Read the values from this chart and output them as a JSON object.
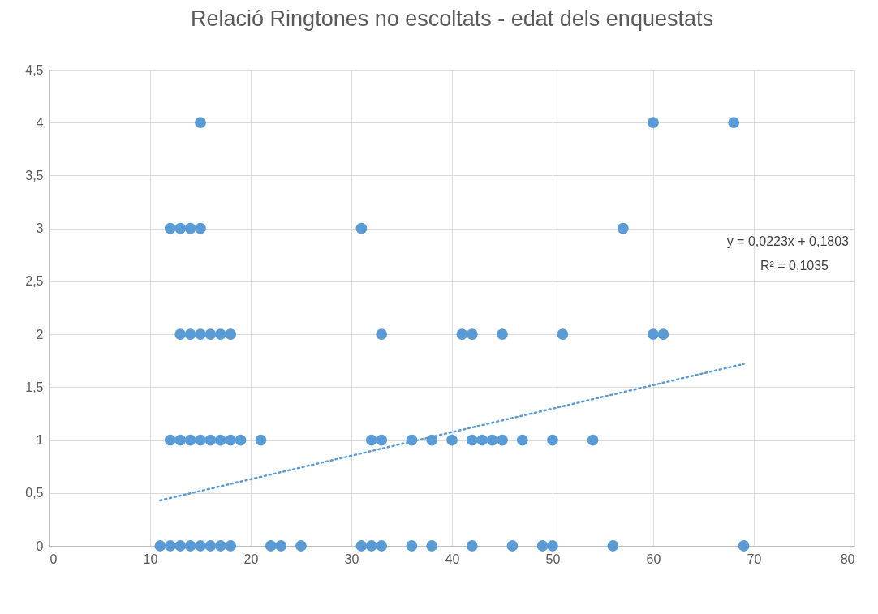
{
  "chart_data": {
    "type": "scatter",
    "title": "Relació Ringtones no escoltats - edat dels enquestats",
    "annotations": [
      "y = 0,0223x + 0,1803",
      "R² = 0,1035"
    ],
    "xlim": [
      0,
      80
    ],
    "xticks": [
      0,
      10,
      20,
      30,
      40,
      50,
      60,
      70,
      80
    ],
    "ylim": [
      0,
      4.5
    ],
    "yticks": [
      0,
      {
        "value": 0.5,
        "label": "0,5"
      },
      1,
      {
        "value": 1.5,
        "label": "1,5"
      },
      2,
      {
        "value": 2.5,
        "label": "2,5"
      },
      3,
      {
        "value": 3.5,
        "label": "3,5"
      },
      4,
      {
        "value": 4.5,
        "label": "4,5"
      }
    ],
    "grid": true,
    "marker": "circle",
    "series": [
      {
        "color": "#5b9bd5",
        "x": [
          11,
          12,
          13,
          14,
          15,
          16,
          17,
          18,
          22,
          23,
          25,
          31,
          32,
          33,
          36,
          38,
          42,
          46,
          49,
          50,
          56,
          69,
          12,
          13,
          14,
          15,
          16,
          17,
          18,
          19,
          21,
          32,
          33,
          36,
          38,
          40,
          42,
          43,
          44,
          45,
          47,
          50,
          54,
          13,
          14,
          15,
          16,
          17,
          18,
          33,
          41,
          42,
          45,
          51,
          60,
          61,
          12,
          13,
          14,
          15,
          31,
          57,
          15,
          60,
          68
        ],
        "values": [
          0,
          0,
          0,
          0,
          0,
          0,
          0,
          0,
          0,
          0,
          0,
          0,
          0,
          0,
          0,
          0,
          0,
          0,
          0,
          0,
          0,
          0,
          1,
          1,
          1,
          1,
          1,
          1,
          1,
          1,
          1,
          1,
          1,
          1,
          1,
          1,
          1,
          1,
          1,
          1,
          1,
          1,
          1,
          2,
          2,
          2,
          2,
          2,
          2,
          2,
          2,
          2,
          2,
          2,
          2,
          2,
          3,
          3,
          3,
          3,
          3,
          3,
          4,
          4,
          4
        ]
      },
      {
        "type": "line",
        "color": "#5b9bd5",
        "line_style": "dotted",
        "marker": "none",
        "x": [
          11,
          69
        ],
        "values": [
          0.43,
          1.72
        ]
      }
    ]
  }
}
